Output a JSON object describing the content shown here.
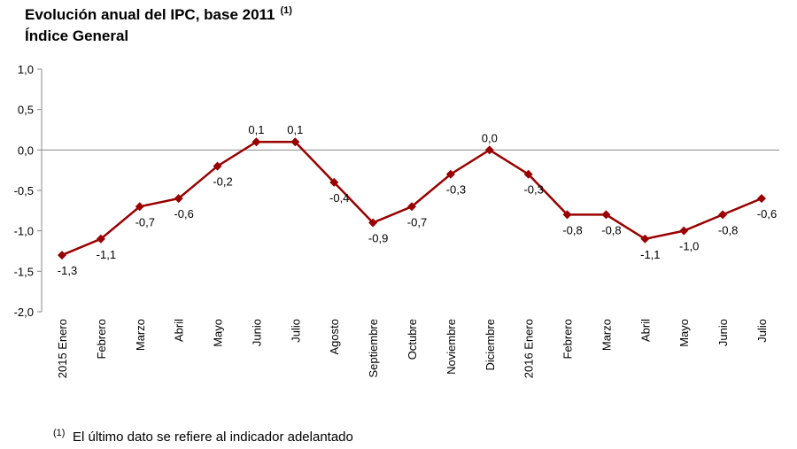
{
  "chart_data": {
    "type": "line",
    "title": "Evolución anual del IPC, base 2011",
    "title_note": "(1)",
    "subtitle": "Índice General",
    "footnote": {
      "marker": "(1)",
      "text": "El último dato se refiere al indicador adelantado"
    },
    "categories": [
      "2015 Enero",
      "Febrero",
      "Marzo",
      "Abril",
      "Mayo",
      "Junio",
      "Julio",
      "Agosto",
      "Septiembre",
      "Octubre",
      "Noviembre",
      "Diciembre",
      "2016 Enero",
      "Febrero",
      "Marzo",
      "Abril",
      "Mayo",
      "Junio",
      "Julio"
    ],
    "values": [
      -1.3,
      -1.1,
      -0.7,
      -0.6,
      -0.2,
      0.1,
      0.1,
      -0.4,
      -0.9,
      -0.7,
      -0.3,
      0.0,
      -0.3,
      -0.8,
      -0.8,
      -1.1,
      -1.0,
      -0.8,
      -0.6
    ],
    "value_labels": [
      "-1,3",
      "-1,1",
      "-0,7",
      "-0,6",
      "-0,2",
      "0,1",
      "0,1",
      "-0,4",
      "-0,9",
      "-0,7",
      "-0,3",
      "0,0",
      "-0,3",
      "-0,8",
      "-0,8",
      "-1,1",
      "-1,0",
      "-0,8",
      "-0,6"
    ],
    "color": "#990000",
    "ylim": [
      -2.0,
      1.0
    ],
    "yticks": [
      {
        "value": -2.0,
        "label": "-2,0"
      },
      {
        "value": -1.5,
        "label": "-1,5"
      },
      {
        "value": -1.0,
        "label": "-1,0"
      },
      {
        "value": -0.5,
        "label": "-0,5"
      },
      {
        "value": 0.0,
        "label": "0,0"
      },
      {
        "value": 0.5,
        "label": "0,5"
      },
      {
        "value": 1.0,
        "label": "1,0"
      }
    ]
  }
}
